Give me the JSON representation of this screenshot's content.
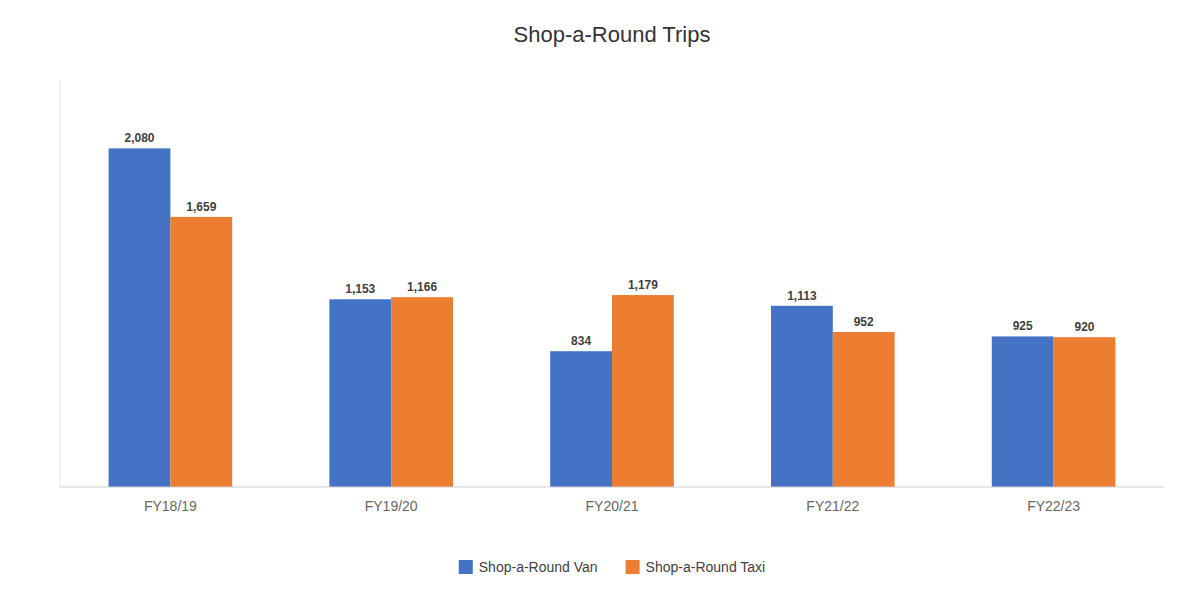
{
  "chart_data": {
    "type": "bar",
    "title": "Shop-a-Round Trips",
    "categories": [
      "FY18/19",
      "FY19/20",
      "FY20/21",
      "FY21/22",
      "FY22/23"
    ],
    "series": [
      {
        "name": "Shop-a-Round Van",
        "color": "#4472C4",
        "values": [
          2080,
          1153,
          834,
          1113,
          925
        ],
        "value_labels": [
          "2,080",
          "1,153",
          "834",
          "1,113",
          "925"
        ]
      },
      {
        "name": "Shop-a-Round Taxi",
        "color": "#ED7D31",
        "values": [
          1659,
          1166,
          1179,
          952,
          920
        ],
        "value_labels": [
          "1,659",
          "1,166",
          "1,179",
          "952",
          "920"
        ]
      }
    ],
    "ylim": [
      0,
      2500
    ],
    "data_labels": true,
    "legend": "bottom",
    "tick_labels": "x",
    "grid": false
  }
}
